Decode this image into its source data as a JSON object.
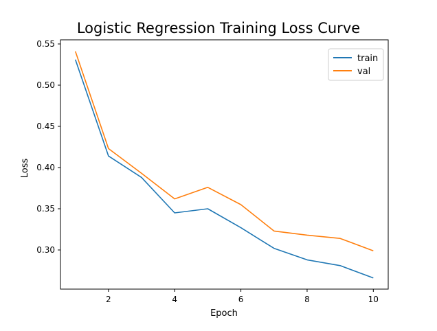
{
  "chart_data": {
    "type": "line",
    "title": "Logistic Regression Training Loss Curve",
    "xlabel": "Epoch",
    "ylabel": "Loss",
    "x": [
      1,
      2,
      3,
      4,
      5,
      6,
      7,
      8,
      9,
      10
    ],
    "xlim": [
      0.55,
      10.45
    ],
    "ylim": [
      0.2525,
      0.555
    ],
    "xticks": [
      2,
      4,
      6,
      8,
      10
    ],
    "yticks": [
      0.3,
      0.35,
      0.4,
      0.45,
      0.5,
      0.55
    ],
    "ytick_labels": [
      "0.30",
      "0.35",
      "0.40",
      "0.45",
      "0.50",
      "0.55"
    ],
    "xtick_labels": [
      "2",
      "4",
      "6",
      "8",
      "10"
    ],
    "grid": false,
    "legend_position": "top-right",
    "series": [
      {
        "name": "train",
        "color": "#1f77b4",
        "values": [
          0.531,
          0.414,
          0.388,
          0.345,
          0.35,
          0.327,
          0.302,
          0.288,
          0.281,
          0.266
        ]
      },
      {
        "name": "val",
        "color": "#ff7f0e",
        "values": [
          0.541,
          0.423,
          0.393,
          0.362,
          0.376,
          0.355,
          0.323,
          0.318,
          0.314,
          0.299
        ]
      }
    ]
  }
}
